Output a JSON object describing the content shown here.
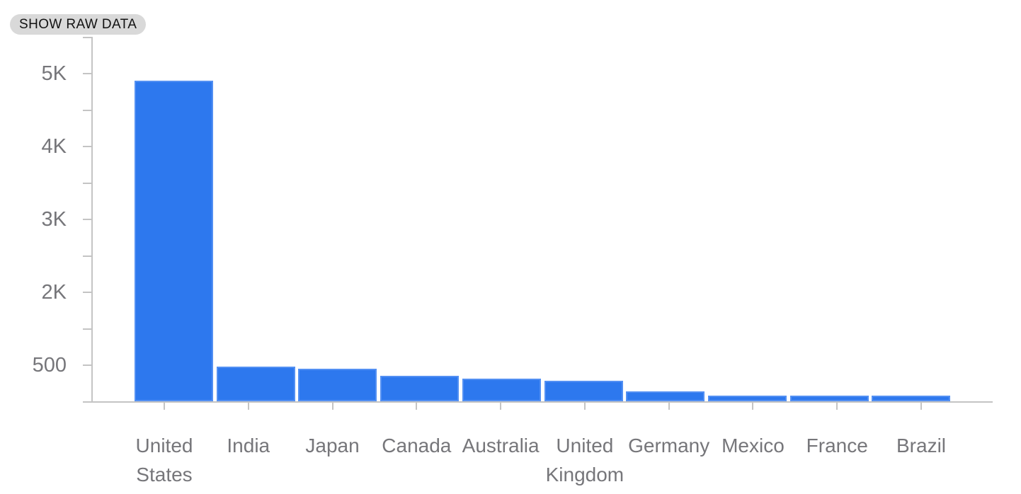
{
  "toolbar": {
    "show_raw_data_label": "SHOW RAW DATA"
  },
  "colors": {
    "bar": "#2d78ee",
    "axis": "#c4c4c4",
    "tick_label": "#76767a",
    "chip_bg": "#d9d9d9",
    "chip_text": "#121212"
  },
  "chart_data": {
    "type": "bar",
    "title": "",
    "xlabel": "",
    "ylabel": "",
    "categories": [
      "United States",
      "India",
      "Japan",
      "Canada",
      "Australia",
      "United Kingdom",
      "Germany",
      "Mexico",
      "France",
      "Brazil"
    ],
    "values": [
      4900,
      480,
      450,
      345,
      315,
      285,
      140,
      80,
      80,
      78
    ],
    "y_tick_labels": [
      "5K",
      "4K",
      "3K",
      "2K",
      "500"
    ],
    "ylim": [
      0,
      5500
    ],
    "grid": false,
    "legend": false,
    "orientation": "vertical"
  }
}
